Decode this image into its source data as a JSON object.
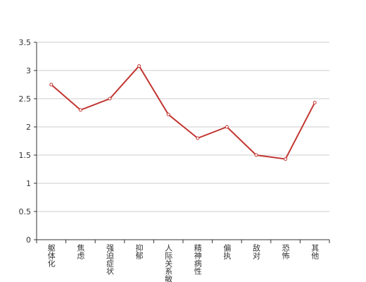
{
  "chart_data": {
    "type": "line",
    "categories": [
      "躯体化",
      "焦虑",
      "强迫症状",
      "抑郁",
      "人际关系敏感",
      "精神病性",
      "偏执",
      "敌对",
      "恐怖",
      "其他"
    ],
    "series": [
      {
        "color": "#c23531",
        "values": [
          2.75,
          2.3,
          2.5,
          3.08,
          2.22,
          1.8,
          2.0,
          1.5,
          1.43,
          2.43
        ]
      }
    ],
    "ylim": [
      0,
      3.5
    ],
    "yticks": [
      0,
      0.5,
      1,
      1.5,
      2,
      2.5,
      3,
      3.5
    ],
    "grid": true
  }
}
